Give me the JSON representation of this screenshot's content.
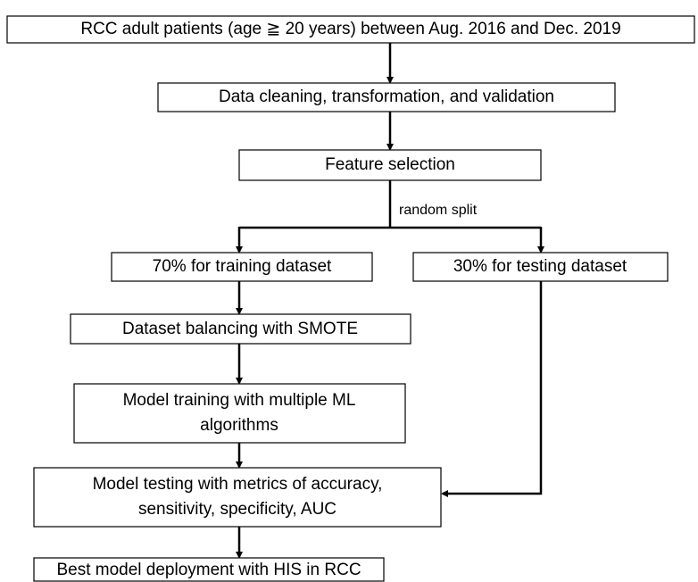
{
  "nodes": [
    {
      "label": "RCC adult patients (age ≧ 20 years) between Aug. 2016 and Dec. 2019"
    },
    {
      "label": "Data cleaning, transformation, and validation"
    },
    {
      "label": "Feature selection"
    },
    {
      "label": "70% for training dataset"
    },
    {
      "label": "30% for testing dataset"
    },
    {
      "label": "Dataset balancing with SMOTE"
    },
    {
      "lines": [
        "Model training with multiple ML",
        "algorithms"
      ]
    },
    {
      "lines": [
        "Model testing with metrics of accuracy,",
        "sensitivity, specificity, AUC"
      ]
    },
    {
      "label": "Best model deployment with HIS in RCC"
    }
  ],
  "edge_labels": [
    "random split"
  ]
}
